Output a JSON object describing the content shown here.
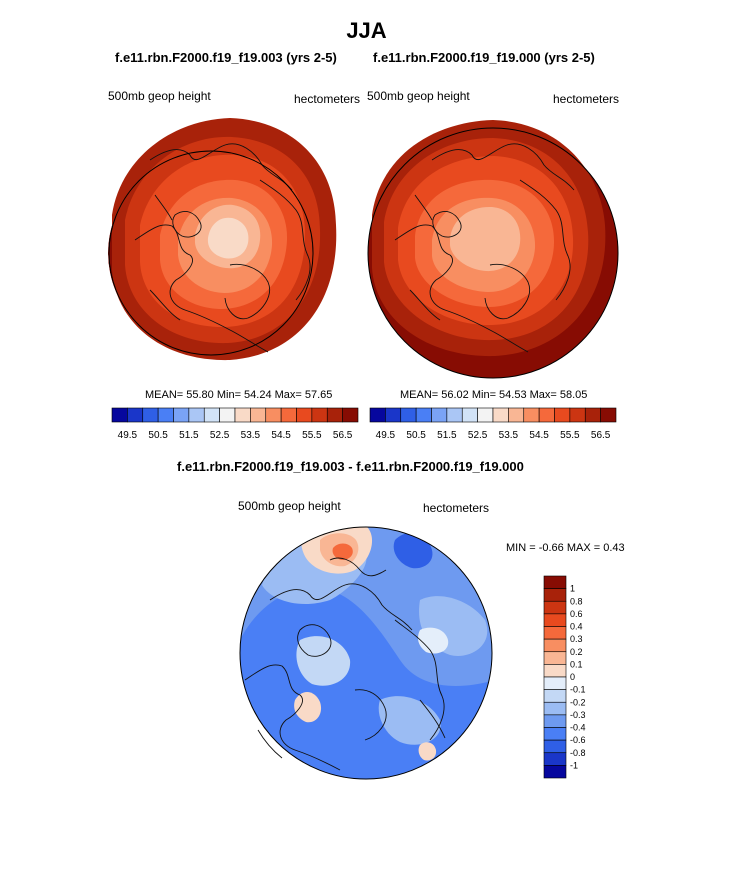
{
  "title": "JJA",
  "panels": [
    {
      "subtitle": "f.e11.rbn.F2000.f19_f19.003 (yrs 2-5)",
      "left_label": "500mb geop height",
      "right_label": "hectometers",
      "stats": "MEAN=  55.80  Min=  54.24  Max=  57.65"
    },
    {
      "subtitle": "f.e11.rbn.F2000.f19_f19.000 (yrs 2-5)",
      "left_label": "500mb geop height",
      "right_label": "hectometers",
      "stats": "MEAN=  56.02  Min=  54.53  Max=  58.05"
    }
  ],
  "diff_panel": {
    "subtitle": "f.e11.rbn.F2000.f19_f19.003 - f.e11.rbn.F2000.f19_f19.000",
    "left_label": "500mb geop height",
    "right_label": "hectometers",
    "stats": "MIN =  -0.66 MAX =   0.43"
  },
  "colorbar_abs": {
    "labels": [
      "49.5",
      "50.5",
      "51.5",
      "52.5",
      "53.5",
      "54.5",
      "55.5",
      "56.5"
    ],
    "colors": [
      "#06079e",
      "#1a36c9",
      "#2f5fe6",
      "#4a7ff5",
      "#7aa3f6",
      "#aac6f5",
      "#d2e3f7",
      "#f3f3f3",
      "#f9dac7",
      "#f9b694",
      "#f88e61",
      "#f5693b",
      "#e84a1f",
      "#cc3512",
      "#a8220a",
      "#870c03"
    ]
  },
  "colorbar_diff": {
    "labels": [
      "1",
      "0.8",
      "0.6",
      "0.4",
      "0.3",
      "0.2",
      "0.1",
      "0",
      "-0.1",
      "-0.2",
      "-0.3",
      "-0.4",
      "-0.6",
      "-0.8",
      "-1"
    ],
    "colors": [
      "#870c03",
      "#a8220a",
      "#cc3512",
      "#e84a1f",
      "#f5693b",
      "#f88e61",
      "#f9b694",
      "#f9dac7",
      "#e4eefa",
      "#c3d8f5",
      "#9bbcf3",
      "#6e9af0",
      "#4a7ff5",
      "#2f5fe6",
      "#1a36c9",
      "#06079e"
    ]
  }
}
